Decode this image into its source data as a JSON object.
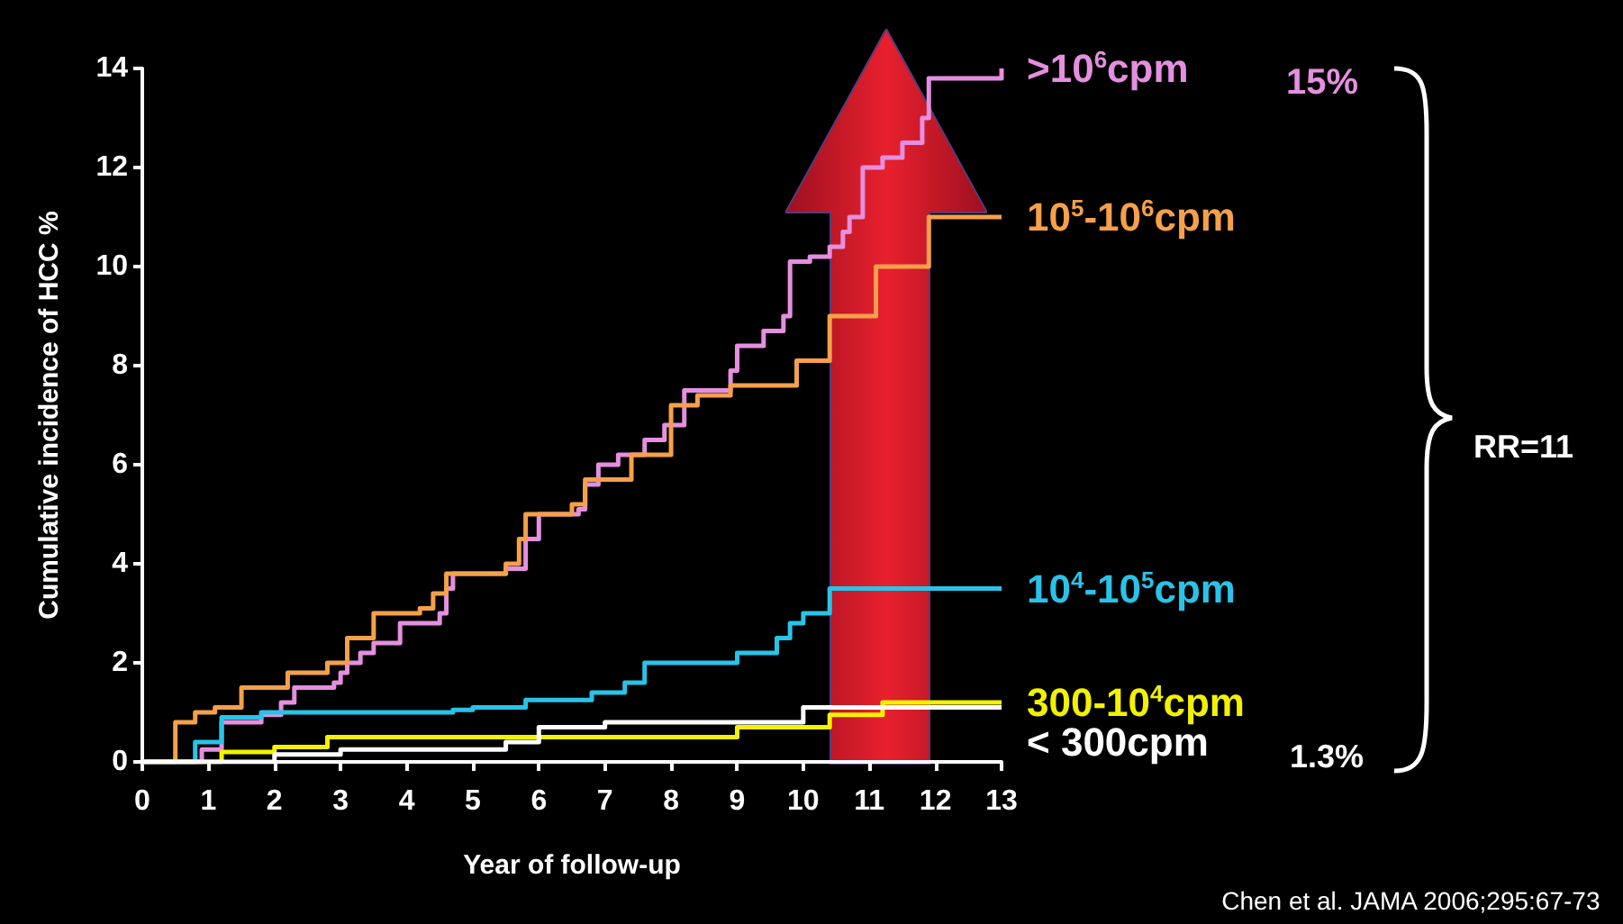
{
  "chart_data": {
    "type": "step",
    "xlabel": "Year of follow-up",
    "ylabel": "Cumulative incidence of HCC %",
    "xlim": [
      0,
      13
    ],
    "xticks": [
      0,
      1,
      2,
      3,
      4,
      5,
      6,
      7,
      8,
      9,
      10,
      11,
      12,
      13
    ],
    "ylim": [
      0,
      14
    ],
    "yticks": [
      0,
      2,
      4,
      6,
      8,
      10,
      12,
      14
    ],
    "grid": false,
    "legend": false,
    "series": [
      {
        "name": ">10$^{6}$cpm",
        "color": "#e58fe0",
        "x": [
          0,
          0.8,
          0.9,
          1.2,
          1.8,
          2.1,
          2.3,
          2.9,
          3.0,
          3.1,
          3.3,
          3.5,
          3.9,
          4.5,
          4.6,
          4.7,
          5.5,
          5.8,
          6.0,
          6.6,
          6.7,
          6.9,
          7.2,
          7.6,
          7.9,
          8.2,
          8.9,
          9.0,
          9.4,
          9.7,
          9.8,
          10.1,
          10.4,
          10.6,
          10.7,
          10.9,
          11.2,
          11.5,
          11.8,
          11.9,
          13
        ],
        "values": [
          0,
          0,
          0.25,
          0.8,
          0.95,
          1.2,
          1.5,
          1.6,
          1.8,
          2.0,
          2.2,
          2.4,
          2.8,
          3.0,
          3.5,
          3.8,
          3.9,
          4.5,
          5.0,
          5.1,
          5.6,
          6.0,
          6.2,
          6.5,
          6.8,
          7.5,
          7.9,
          8.4,
          8.7,
          9.0,
          10.1,
          10.2,
          10.4,
          10.7,
          11.0,
          12.0,
          12.2,
          12.5,
          13.0,
          13.8,
          14.0
        ]
      },
      {
        "name": "10$^{5}$-10$^{6}$cpm",
        "color": "#f5a04a",
        "x": [
          0,
          0.5,
          0.8,
          1.1,
          1.5,
          2.2,
          2.8,
          3.1,
          3.5,
          4.2,
          4.4,
          4.6,
          5.5,
          5.7,
          5.8,
          6.5,
          6.7,
          7.4,
          8.0,
          8.4,
          8.9,
          9.9,
          10.4,
          11.1,
          11.9,
          13
        ],
        "values": [
          0,
          0.8,
          1.0,
          1.1,
          1.5,
          1.8,
          2.0,
          2.5,
          3.0,
          3.1,
          3.4,
          3.8,
          4.0,
          4.5,
          5.0,
          5.2,
          5.7,
          6.2,
          7.2,
          7.4,
          7.6,
          8.1,
          9.0,
          10.0,
          11.0,
          11.0
        ]
      },
      {
        "name": "10$^{4}$-10$^{5}$cpm",
        "color": "#29c3e8",
        "x": [
          0,
          0.8,
          1.2,
          1.8,
          4.7,
          5.0,
          5.8,
          6.8,
          7.3,
          7.6,
          9.0,
          9.6,
          9.8,
          10.0,
          10.4,
          13
        ],
        "values": [
          0,
          0.4,
          0.9,
          1.0,
          1.05,
          1.1,
          1.25,
          1.4,
          1.6,
          2.0,
          2.2,
          2.5,
          2.8,
          3.0,
          3.5,
          3.5
        ]
      },
      {
        "name": "300-10$^{4}$cpm",
        "color": "#f2f200",
        "x": [
          0,
          1.2,
          2.0,
          2.8,
          9.0,
          10.4,
          11.2,
          13
        ],
        "values": [
          0,
          0.2,
          0.3,
          0.5,
          0.7,
          0.95,
          1.2,
          1.2
        ]
      },
      {
        "name": "< 300cpm",
        "color": "#ffffff",
        "x": [
          0,
          2.0,
          3.0,
          5.5,
          6.0,
          7.0,
          10.0,
          13
        ],
        "values": [
          0,
          0.15,
          0.25,
          0.4,
          0.7,
          0.8,
          1.1,
          1.1
        ]
      }
    ],
    "annotations": [
      "15%",
      "1.3%",
      "RR=11",
      "Chen et al. JAMA 2006;295:67-73"
    ]
  }
}
